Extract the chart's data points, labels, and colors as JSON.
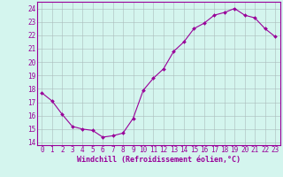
{
  "x": [
    0,
    1,
    2,
    3,
    4,
    5,
    6,
    7,
    8,
    9,
    10,
    11,
    12,
    13,
    14,
    15,
    16,
    17,
    18,
    19,
    20,
    21,
    22,
    23
  ],
  "y": [
    17.7,
    17.1,
    16.1,
    15.2,
    15.0,
    14.9,
    14.4,
    14.5,
    14.7,
    15.8,
    17.9,
    18.8,
    19.5,
    20.8,
    21.5,
    22.5,
    22.9,
    23.5,
    23.7,
    24.0,
    23.5,
    23.3,
    22.5,
    21.9
  ],
  "line_color": "#990099",
  "marker": "D",
  "marker_size": 2,
  "bg_color": "#d4f5ee",
  "grid_color": "#aabbbb",
  "axis_label_color": "#990099",
  "tick_color": "#990099",
  "xlabel": "Windchill (Refroidissement éolien,°C)",
  "ylim": [
    13.8,
    24.5
  ],
  "yticks": [
    14,
    15,
    16,
    17,
    18,
    19,
    20,
    21,
    22,
    23,
    24
  ],
  "xticks": [
    0,
    1,
    2,
    3,
    4,
    5,
    6,
    7,
    8,
    9,
    10,
    11,
    12,
    13,
    14,
    15,
    16,
    17,
    18,
    19,
    20,
    21,
    22,
    23
  ],
  "border_color": "#990099",
  "tick_fontsize": 5.5,
  "xlabel_fontsize": 6.0
}
